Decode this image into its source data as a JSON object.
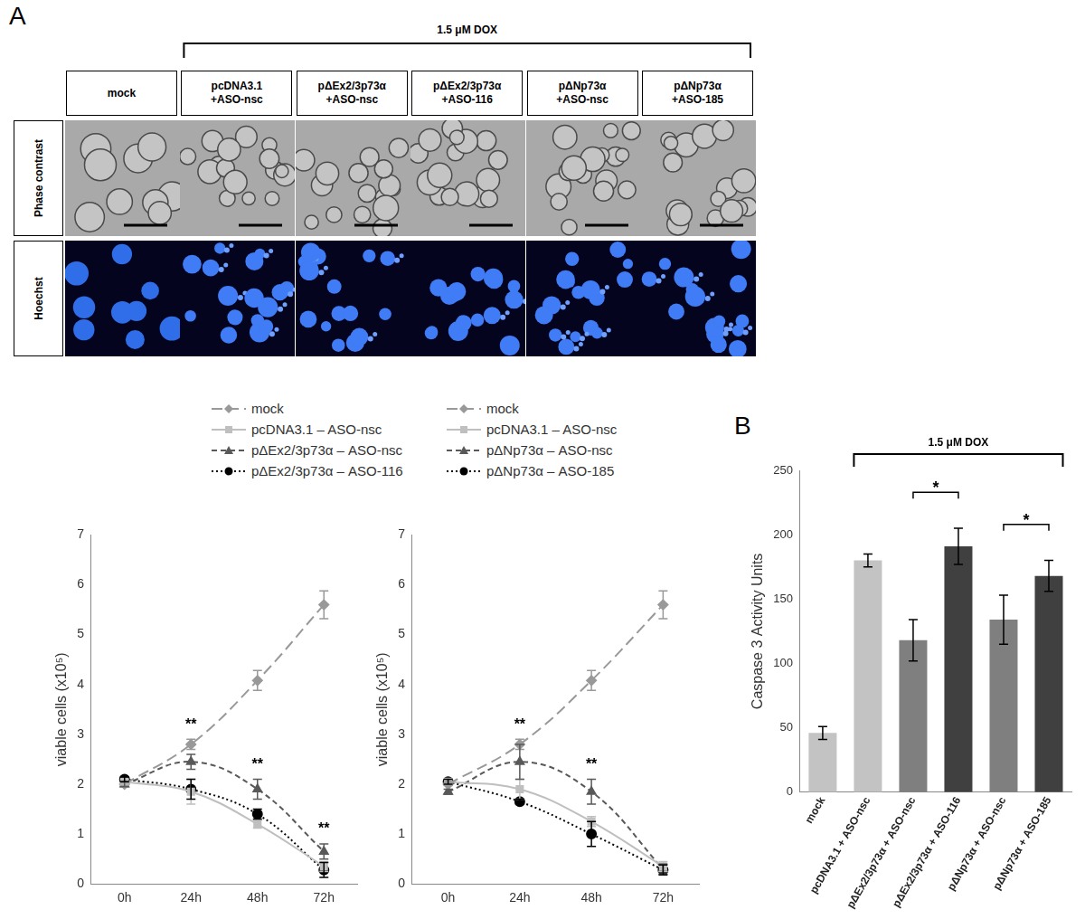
{
  "figure": {
    "panel_labels": [
      "A",
      "B"
    ],
    "treatment": "1.5 μM DOX",
    "image_grid": {
      "columns": [
        [
          "mock"
        ],
        [
          "pcDNA3.1",
          "+ASO-nsc"
        ],
        [
          "pΔEx2/3p73α",
          "+ASO-nsc"
        ],
        [
          "pΔEx2/3p73α",
          "+ASO-116"
        ],
        [
          "pΔNp73α",
          "+ASO-nsc"
        ],
        [
          "pΔNp73α",
          "+ASO-185"
        ]
      ],
      "rows": [
        "Phase contrast",
        "Hoechst"
      ]
    }
  },
  "chart_data": [
    {
      "type": "line",
      "categories": [
        "0h",
        "24h",
        "48h",
        "72h"
      ],
      "y_label": "viable cells (x10⁵)",
      "ylim": [
        0,
        7
      ],
      "yticks": [
        0,
        1,
        2,
        3,
        4,
        5,
        6,
        7
      ],
      "grid": false,
      "legend": "top",
      "series": [
        {
          "name": "mock",
          "color": "#999999",
          "marker": "diamond",
          "line_style": "long_dash",
          "values": [
            2.0,
            2.8,
            4.08,
            5.6
          ],
          "errors": [
            0.03,
            0.1,
            0.2,
            0.28
          ]
        },
        {
          "name": "pcDNA3.1 – ASO-nsc",
          "color": "#bfbfbf",
          "marker": "square",
          "line_style": "solid",
          "values": [
            2.05,
            1.85,
            1.2,
            0.35
          ],
          "errors": [
            0.05,
            0.25,
            0.08,
            0.1
          ]
        },
        {
          "name": "pΔEx2/3p73α – ASO-nsc",
          "color": "#595959",
          "marker": "triangle",
          "line_style": "dashed",
          "values": [
            2.0,
            2.45,
            1.9,
            0.65
          ],
          "errors": [
            0.05,
            0.15,
            0.2,
            0.15
          ]
        },
        {
          "name": "pΔEx2/3p73α – ASO-116",
          "color": "#000000",
          "marker": "circle",
          "line_style": "dotted",
          "values": [
            2.1,
            1.9,
            1.4,
            0.28
          ],
          "errors": [
            0.05,
            0.2,
            0.1,
            0.15
          ]
        }
      ],
      "annotations": [
        {
          "x": "24h",
          "y": 3.05,
          "text": "**"
        },
        {
          "x": "48h",
          "y": 2.25,
          "text": "**"
        },
        {
          "x": "72h",
          "y": 0.95,
          "text": "**"
        }
      ]
    },
    {
      "type": "line",
      "categories": [
        "0h",
        "24h",
        "48h",
        "72h"
      ],
      "y_label": "viable cells (x10⁵)",
      "ylim": [
        0,
        7
      ],
      "yticks": [
        0,
        1,
        2,
        3,
        4,
        5,
        6,
        7
      ],
      "grid": false,
      "legend": "top",
      "series": [
        {
          "name": "mock",
          "color": "#999999",
          "marker": "diamond",
          "line_style": "long_dash",
          "values": [
            2.0,
            2.8,
            4.08,
            5.6
          ],
          "errors": [
            0.03,
            0.1,
            0.2,
            0.28
          ]
        },
        {
          "name": "pcDNA3.1 – ASO-nsc",
          "color": "#bfbfbf",
          "marker": "square",
          "line_style": "solid",
          "values": [
            2.05,
            1.9,
            1.25,
            0.35
          ],
          "errors": [
            0.05,
            0.2,
            0.1,
            0.1
          ]
        },
        {
          "name": "pΔNp73α – ASO-nsc",
          "color": "#595959",
          "marker": "triangle",
          "line_style": "dashed",
          "values": [
            1.85,
            2.45,
            1.85,
            0.3
          ],
          "errors": [
            0.05,
            0.35,
            0.25,
            0.1
          ]
        },
        {
          "name": "pΔNp73α – ASO-185",
          "color": "#000000",
          "marker": "circle",
          "line_style": "dotted",
          "values": [
            2.05,
            1.65,
            1.0,
            0.28
          ],
          "errors": [
            0.05,
            0.05,
            0.25,
            0.1
          ]
        }
      ],
      "annotations": [
        {
          "x": "24h",
          "y": 3.05,
          "text": "**"
        },
        {
          "x": "48h",
          "y": 2.25,
          "text": "**"
        }
      ]
    },
    {
      "type": "bar",
      "categories": [
        "mock",
        "pcDNA3.1 + ASO-nsc",
        "pΔEx2/3p73α + ASO-nsc",
        "pΔEx2/3p73α + ASO-116",
        "pΔNp73α + ASO-nsc",
        "pΔNp73α + ASO-185"
      ],
      "values": [
        46,
        180,
        118,
        191,
        134,
        168
      ],
      "errors": [
        5,
        5,
        16,
        14,
        19,
        12
      ],
      "colors": [
        "#c3c3c3",
        "#c3c3c3",
        "#7f7f7f",
        "#404040",
        "#7f7f7f",
        "#404040"
      ],
      "y_label": "Caspase 3 Activity Units",
      "ylim": [
        0,
        250
      ],
      "yticks": [
        0,
        50,
        100,
        150,
        200,
        250
      ],
      "grid": false,
      "bracket": {
        "text": "1.5 μM DOX",
        "from": "pcDNA3.1 + ASO-nsc",
        "to": "pΔNp73α + ASO-185"
      },
      "significance": [
        {
          "from": "pΔEx2/3p73α + ASO-nsc",
          "to": "pΔEx2/3p73α + ASO-116",
          "y": 233,
          "text": "*"
        },
        {
          "from": "pΔNp73α + ASO-nsc",
          "to": "pΔNp73α + ASO-185",
          "y": 208,
          "text": "*"
        }
      ]
    }
  ]
}
